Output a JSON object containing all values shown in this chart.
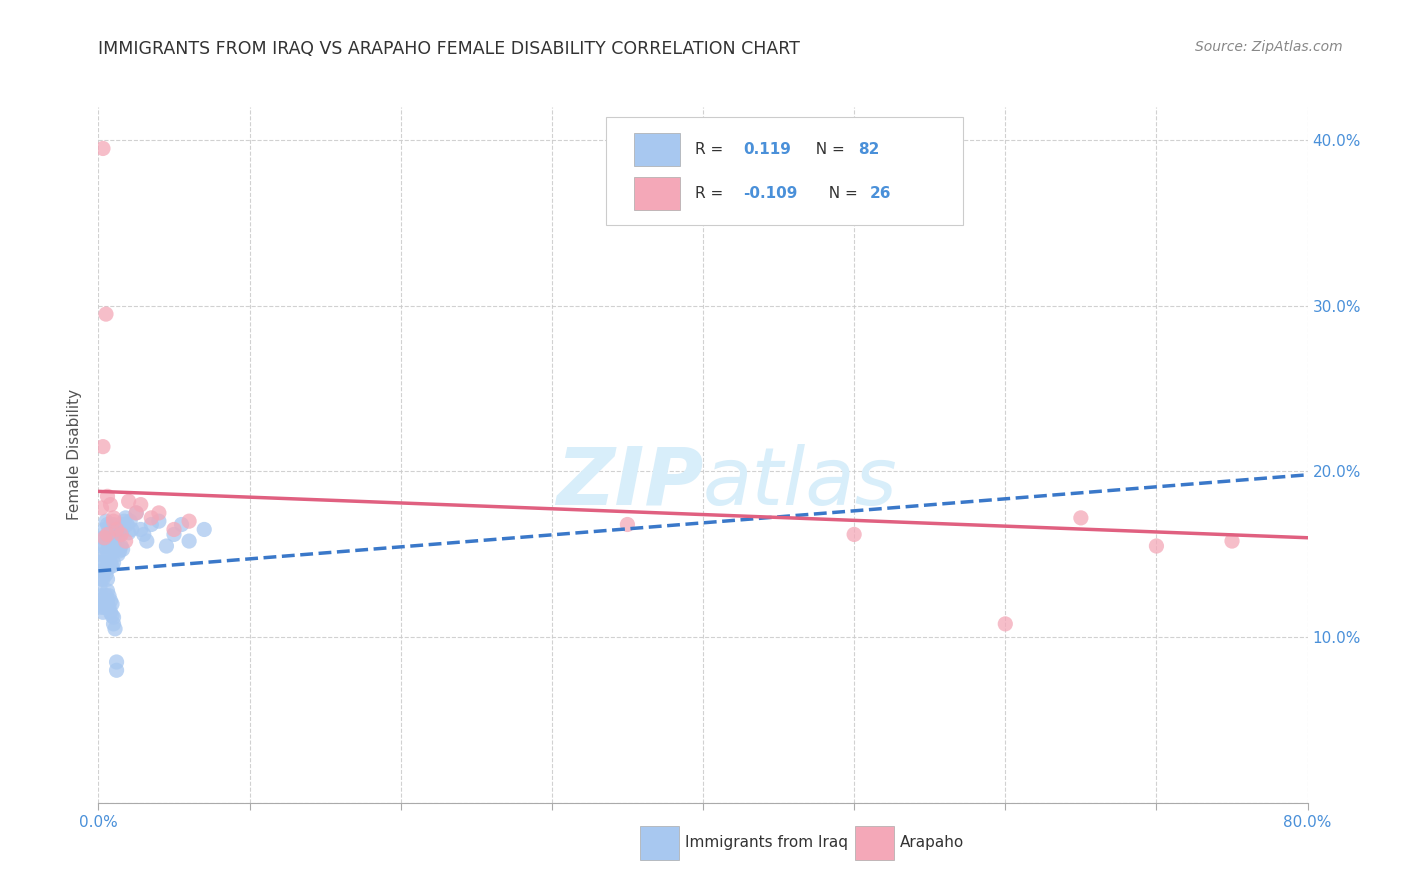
{
  "title": "IMMIGRANTS FROM IRAQ VS ARAPAHO FEMALE DISABILITY CORRELATION CHART",
  "source": "Source: ZipAtlas.com",
  "ylabel_label": "Female Disability",
  "x_min": 0.0,
  "x_max": 0.8,
  "y_min": 0.0,
  "y_max": 0.42,
  "x_ticks": [
    0.0,
    0.1,
    0.2,
    0.3,
    0.4,
    0.5,
    0.6,
    0.7,
    0.8
  ],
  "y_ticks": [
    0.0,
    0.1,
    0.2,
    0.3,
    0.4
  ],
  "blue_color": "#A8C8F0",
  "pink_color": "#F4A8B8",
  "blue_line_color": "#3A78C9",
  "pink_line_color": "#E06080",
  "watermark_color": "#D8EEFA",
  "blue_scatter_x": [
    0.001,
    0.002,
    0.002,
    0.002,
    0.003,
    0.003,
    0.003,
    0.003,
    0.004,
    0.004,
    0.004,
    0.005,
    0.005,
    0.005,
    0.005,
    0.006,
    0.006,
    0.006,
    0.006,
    0.007,
    0.007,
    0.007,
    0.008,
    0.008,
    0.008,
    0.009,
    0.009,
    0.009,
    0.01,
    0.01,
    0.01,
    0.011,
    0.011,
    0.012,
    0.012,
    0.013,
    0.013,
    0.014,
    0.014,
    0.015,
    0.015,
    0.016,
    0.016,
    0.017,
    0.018,
    0.019,
    0.02,
    0.021,
    0.022,
    0.025,
    0.028,
    0.03,
    0.032,
    0.035,
    0.04,
    0.045,
    0.05,
    0.055,
    0.06,
    0.07,
    0.001,
    0.002,
    0.002,
    0.003,
    0.003,
    0.004,
    0.004,
    0.005,
    0.005,
    0.006,
    0.006,
    0.007,
    0.007,
    0.008,
    0.008,
    0.009,
    0.009,
    0.01,
    0.01,
    0.011,
    0.012,
    0.012
  ],
  "blue_scatter_y": [
    0.145,
    0.155,
    0.14,
    0.135,
    0.16,
    0.15,
    0.145,
    0.135,
    0.165,
    0.155,
    0.14,
    0.17,
    0.16,
    0.148,
    0.138,
    0.168,
    0.158,
    0.148,
    0.135,
    0.165,
    0.155,
    0.142,
    0.168,
    0.158,
    0.145,
    0.165,
    0.155,
    0.143,
    0.168,
    0.158,
    0.145,
    0.162,
    0.152,
    0.165,
    0.153,
    0.16,
    0.15,
    0.163,
    0.152,
    0.168,
    0.155,
    0.165,
    0.153,
    0.17,
    0.172,
    0.168,
    0.163,
    0.17,
    0.165,
    0.175,
    0.165,
    0.162,
    0.158,
    0.168,
    0.17,
    0.155,
    0.162,
    0.168,
    0.158,
    0.165,
    0.13,
    0.125,
    0.118,
    0.12,
    0.115,
    0.122,
    0.118,
    0.125,
    0.12,
    0.128,
    0.122,
    0.125,
    0.118,
    0.122,
    0.115,
    0.12,
    0.113,
    0.108,
    0.112,
    0.105,
    0.08,
    0.085
  ],
  "pink_scatter_x": [
    0.003,
    0.003,
    0.005,
    0.006,
    0.008,
    0.01,
    0.012,
    0.015,
    0.018,
    0.02,
    0.025,
    0.028,
    0.035,
    0.04,
    0.05,
    0.06,
    0.35,
    0.5,
    0.6,
    0.65,
    0.7,
    0.75,
    0.002,
    0.004,
    0.006,
    0.01
  ],
  "pink_scatter_y": [
    0.395,
    0.215,
    0.295,
    0.185,
    0.18,
    0.17,
    0.165,
    0.162,
    0.158,
    0.182,
    0.175,
    0.18,
    0.172,
    0.175,
    0.165,
    0.17,
    0.168,
    0.162,
    0.108,
    0.172,
    0.155,
    0.158,
    0.178,
    0.16,
    0.162,
    0.172
  ],
  "blue_trend_x": [
    0.0,
    0.8
  ],
  "blue_trend_y": [
    0.14,
    0.198
  ],
  "pink_trend_x": [
    0.0,
    0.8
  ],
  "pink_trend_y": [
    0.188,
    0.16
  ]
}
